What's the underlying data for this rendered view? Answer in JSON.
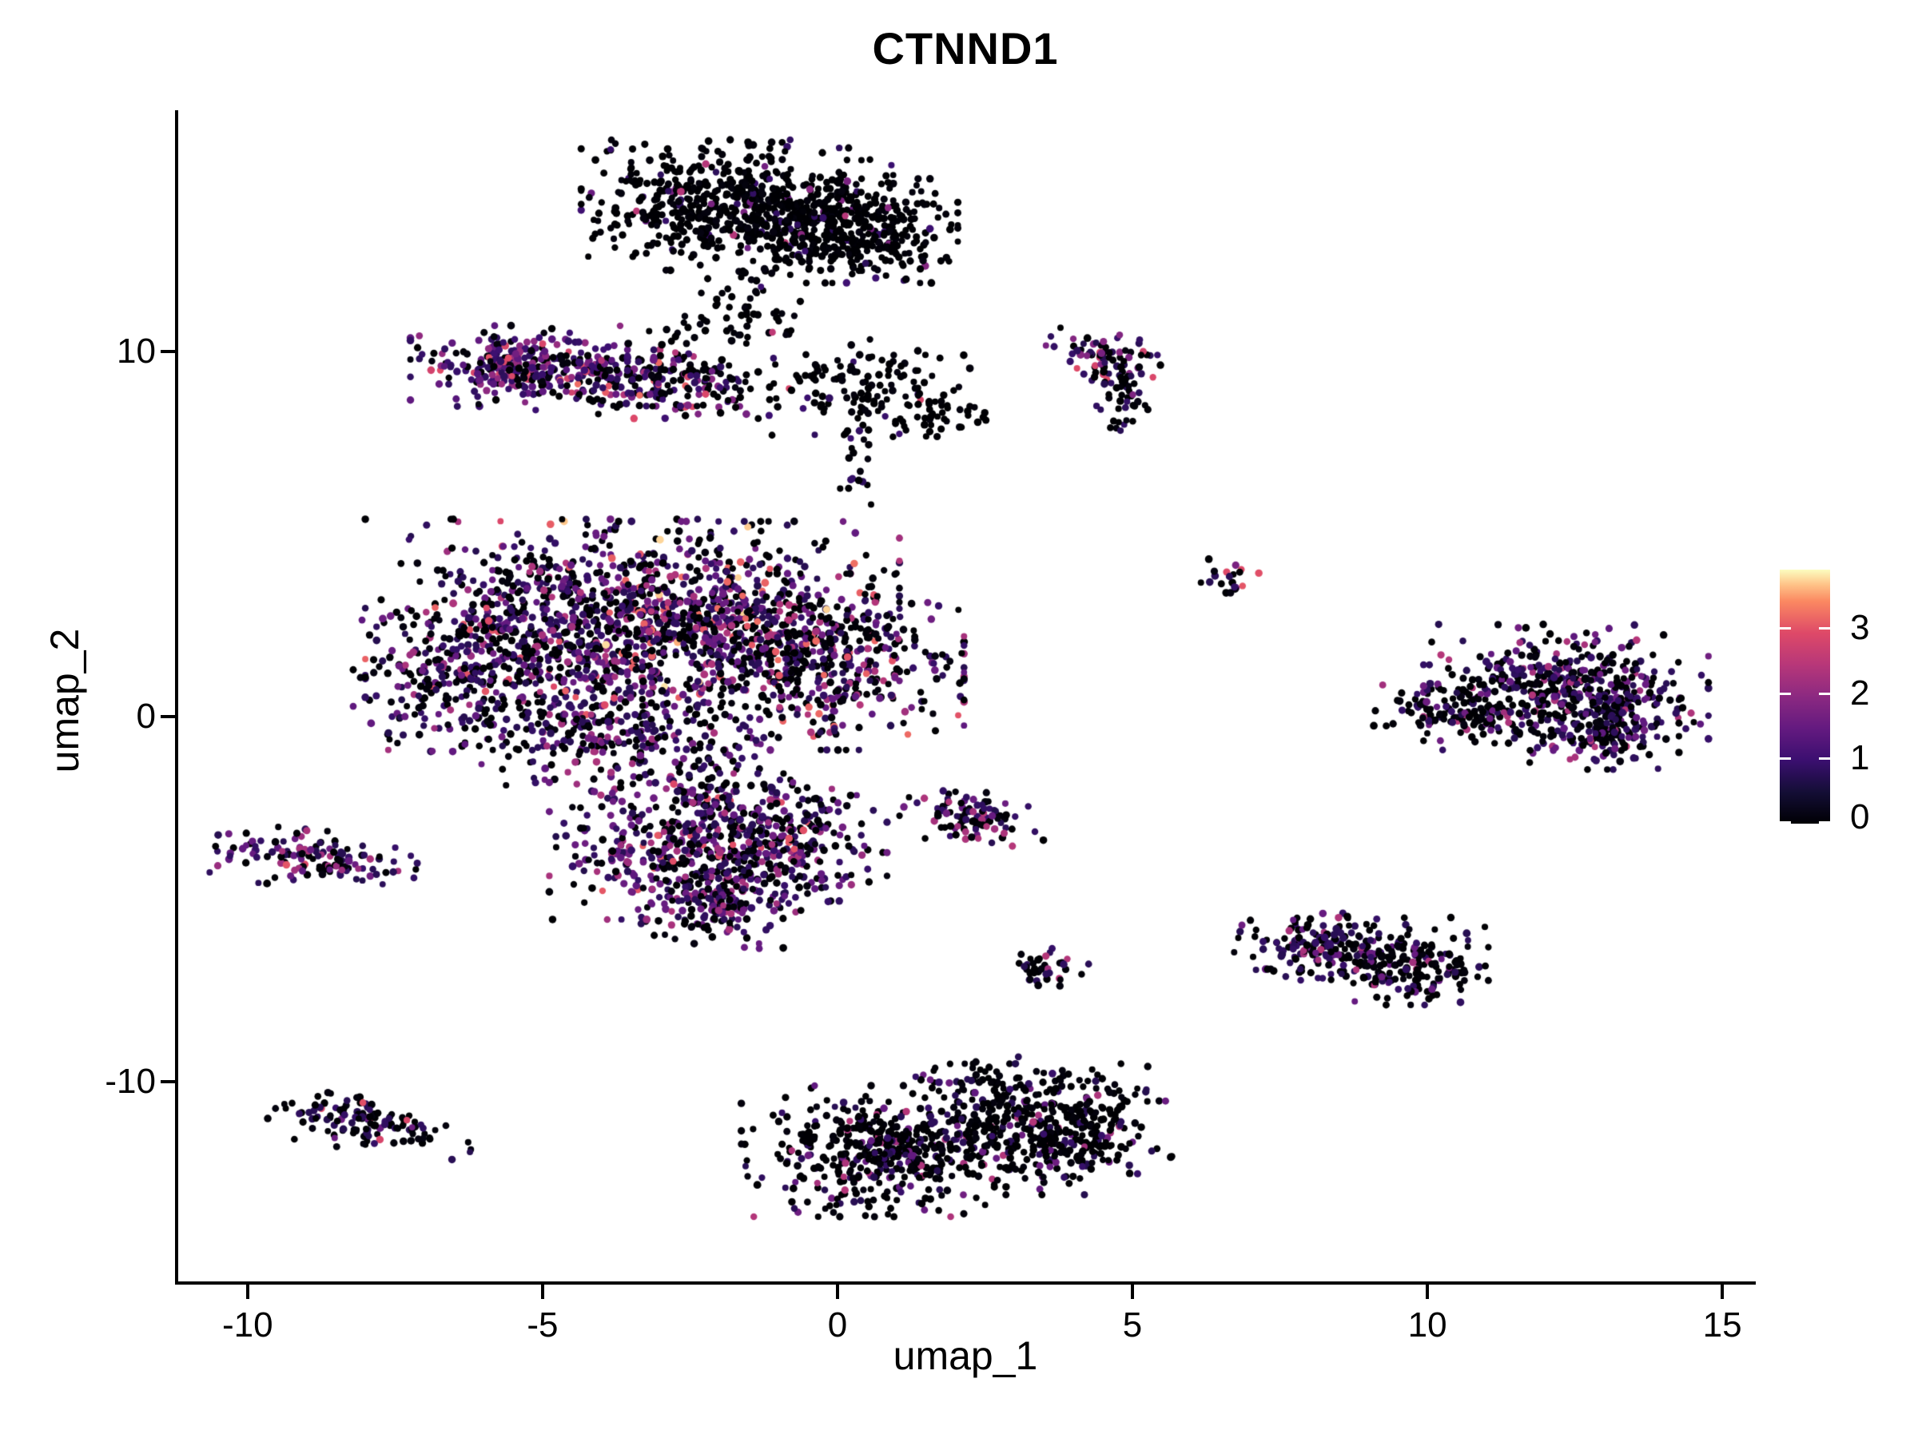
{
  "title": "CTNND1",
  "chart_data": {
    "type": "scatter",
    "title": "CTNND1",
    "xlabel": "umap_1",
    "ylabel": "umap_2",
    "xlim": [
      -11.19,
      15.54
    ],
    "ylim": [
      -15.51,
      16.56
    ],
    "x_ticks": [
      -10,
      -5,
      0,
      5,
      10,
      15
    ],
    "y_ticks": [
      -10,
      0,
      10
    ],
    "grid": false,
    "legend_position": "right",
    "point_radius": 4.4,
    "color_scale": {
      "name": "magma",
      "domain": [
        0,
        3.9
      ],
      "legend_ticks": [
        0,
        1,
        2,
        3
      ],
      "stops": [
        [
          0.0,
          "#000004"
        ],
        [
          0.125,
          "#140e36"
        ],
        [
          0.25,
          "#3b0f70"
        ],
        [
          0.375,
          "#641a80"
        ],
        [
          0.5,
          "#8c2981"
        ],
        [
          0.625,
          "#b73779"
        ],
        [
          0.75,
          "#de4968"
        ],
        [
          0.875,
          "#fb8861"
        ],
        [
          0.94,
          "#fec287"
        ],
        [
          1.0,
          "#fcfdbf"
        ]
      ]
    },
    "clusters": [
      {
        "name": "top-blob-main",
        "kind": "blob",
        "cx": -1.7,
        "cy": 14.0,
        "sx": 1.15,
        "sy": 0.78,
        "n": 620,
        "expr": [
          [
            0,
            0.93
          ],
          [
            0.9,
            0.04
          ],
          [
            1.6,
            0.02
          ],
          [
            2.4,
            0.01
          ]
        ]
      },
      {
        "name": "top-blob-right",
        "kind": "blob",
        "cx": 0.2,
        "cy": 13.3,
        "sx": 0.8,
        "sy": 0.62,
        "n": 380,
        "expr": [
          [
            0,
            0.94
          ],
          [
            0.9,
            0.04
          ],
          [
            1.8,
            0.02
          ]
        ]
      },
      {
        "name": "top-blob-bottom-trail",
        "kind": "line",
        "x1": -1.4,
        "y1": 12.2,
        "x2": -1.1,
        "y2": 10.4,
        "jitter": 0.35,
        "n": 45,
        "expr": [
          [
            0,
            0.93
          ],
          [
            0.9,
            0.04
          ],
          [
            2.6,
            0.03
          ]
        ]
      },
      {
        "name": "trail-to-left",
        "kind": "line",
        "x1": -1.9,
        "y1": 11.6,
        "x2": -2.6,
        "y2": 10.1,
        "jitter": 0.3,
        "n": 30,
        "expr": [
          [
            0,
            0.95
          ],
          [
            1.0,
            0.05
          ]
        ]
      },
      {
        "name": "neck-cluster",
        "kind": "blob",
        "cx": 0.45,
        "cy": 9.0,
        "sx": 0.78,
        "sy": 0.6,
        "n": 130,
        "expr": [
          [
            0,
            0.92
          ],
          [
            0.9,
            0.05
          ],
          [
            2.8,
            0.03
          ]
        ]
      },
      {
        "name": "neck-right-jut",
        "kind": "blob",
        "cx": 1.7,
        "cy": 8.2,
        "sx": 0.4,
        "sy": 0.3,
        "n": 40,
        "expr": [
          [
            0,
            0.95
          ],
          [
            0.9,
            0.05
          ]
        ]
      },
      {
        "name": "neck-down-strand",
        "kind": "line",
        "x1": 0.35,
        "y1": 8.2,
        "x2": 0.1,
        "y2": 6.2,
        "jitter": 0.28,
        "n": 22,
        "expr": [
          [
            0,
            0.9
          ],
          [
            0.9,
            0.1
          ]
        ]
      },
      {
        "name": "left-purple-dense",
        "kind": "blob",
        "cx": -5.4,
        "cy": 9.6,
        "sx": 0.8,
        "sy": 0.48,
        "n": 270,
        "expr": [
          [
            0,
            0.22
          ],
          [
            0.9,
            0.34
          ],
          [
            1.4,
            0.22
          ],
          [
            2.0,
            0.14
          ],
          [
            2.9,
            0.08
          ]
        ]
      },
      {
        "name": "left-purple-mid",
        "kind": "blob",
        "cx": -3.5,
        "cy": 9.25,
        "sx": 0.85,
        "sy": 0.42,
        "n": 190,
        "expr": [
          [
            0,
            0.5
          ],
          [
            0.9,
            0.25
          ],
          [
            1.6,
            0.12
          ],
          [
            2.3,
            0.08
          ],
          [
            3.1,
            0.05
          ]
        ]
      },
      {
        "name": "left-purple-tip",
        "kind": "blob",
        "cx": -2.3,
        "cy": 8.9,
        "sx": 0.5,
        "sy": 0.32,
        "n": 70,
        "expr": [
          [
            0,
            0.62
          ],
          [
            0.9,
            0.18
          ],
          [
            1.8,
            0.1
          ],
          [
            2.9,
            0.1
          ]
        ]
      },
      {
        "name": "central-left",
        "kind": "blob",
        "cx": -4.9,
        "cy": 2.3,
        "sx": 1.35,
        "sy": 1.35,
        "n": 680,
        "expr": [
          [
            0,
            0.44
          ],
          [
            0.8,
            0.26
          ],
          [
            1.5,
            0.18
          ],
          [
            2.2,
            0.08
          ],
          [
            3.0,
            0.04
          ]
        ]
      },
      {
        "name": "central-mid",
        "kind": "blob",
        "cx": -2.4,
        "cy": 2.7,
        "sx": 1.5,
        "sy": 1.15,
        "n": 760,
        "expr": [
          [
            0,
            0.4
          ],
          [
            0.8,
            0.24
          ],
          [
            1.5,
            0.18
          ],
          [
            2.3,
            0.11
          ],
          [
            3.1,
            0.05
          ],
          [
            3.7,
            0.02
          ]
        ]
      },
      {
        "name": "central-right",
        "kind": "blob",
        "cx": -0.5,
        "cy": 1.5,
        "sx": 1.15,
        "sy": 1.05,
        "n": 520,
        "expr": [
          [
            0,
            0.48
          ],
          [
            0.8,
            0.22
          ],
          [
            1.5,
            0.16
          ],
          [
            2.3,
            0.09
          ],
          [
            3.1,
            0.05
          ]
        ]
      },
      {
        "name": "central-left-edge",
        "kind": "blob",
        "cx": -6.6,
        "cy": 1.0,
        "sx": 0.7,
        "sy": 0.85,
        "n": 170,
        "expr": [
          [
            0,
            0.5
          ],
          [
            0.8,
            0.3
          ],
          [
            1.5,
            0.15
          ],
          [
            2.2,
            0.05
          ]
        ]
      },
      {
        "name": "central-bottom",
        "kind": "blob",
        "cx": -3.9,
        "cy": -0.5,
        "sx": 1.05,
        "sy": 0.6,
        "n": 220,
        "expr": [
          [
            0,
            0.45
          ],
          [
            0.8,
            0.3
          ],
          [
            1.5,
            0.15
          ],
          [
            2.2,
            0.1
          ]
        ]
      },
      {
        "name": "bridge-mid",
        "kind": "line",
        "x1": -2.4,
        "y1": -1.2,
        "x2": -1.8,
        "y2": -2.2,
        "jitter": 0.4,
        "n": 50,
        "expr": [
          [
            0,
            0.5
          ],
          [
            0.8,
            0.3
          ],
          [
            1.6,
            0.2
          ]
        ]
      },
      {
        "name": "lower-central-left",
        "kind": "blob",
        "cx": -2.7,
        "cy": -3.6,
        "sx": 0.95,
        "sy": 0.85,
        "n": 360,
        "expr": [
          [
            0,
            0.34
          ],
          [
            0.8,
            0.3
          ],
          [
            1.5,
            0.22
          ],
          [
            2.2,
            0.1
          ],
          [
            3.0,
            0.04
          ]
        ]
      },
      {
        "name": "lower-central-right",
        "kind": "blob",
        "cx": -1.0,
        "cy": -3.4,
        "sx": 0.8,
        "sy": 0.8,
        "n": 300,
        "expr": [
          [
            0,
            0.45
          ],
          [
            0.8,
            0.28
          ],
          [
            1.5,
            0.17
          ],
          [
            2.2,
            0.08
          ],
          [
            3.0,
            0.02
          ]
        ]
      },
      {
        "name": "lower-central-tip",
        "kind": "blob",
        "cx": -2.0,
        "cy": -5.2,
        "sx": 0.6,
        "sy": 0.5,
        "n": 150,
        "expr": [
          [
            0,
            0.4
          ],
          [
            0.8,
            0.3
          ],
          [
            1.5,
            0.2
          ],
          [
            2.2,
            0.1
          ]
        ]
      },
      {
        "name": "small-left",
        "kind": "blob",
        "cx": -8.85,
        "cy": -3.9,
        "sx": 0.75,
        "sy": 0.34,
        "n": 135,
        "rot": -8,
        "expr": [
          [
            0,
            0.28
          ],
          [
            0.8,
            0.34
          ],
          [
            1.5,
            0.22
          ],
          [
            2.2,
            0.13
          ],
          [
            3.0,
            0.03
          ]
        ]
      },
      {
        "name": "small-left-bottom",
        "kind": "blob",
        "cx": -7.9,
        "cy": -11.15,
        "sx": 0.78,
        "sy": 0.32,
        "n": 125,
        "rot": -12,
        "expr": [
          [
            0,
            0.58
          ],
          [
            0.8,
            0.3
          ],
          [
            1.5,
            0.08
          ],
          [
            2.9,
            0.04
          ]
        ]
      },
      {
        "name": "bottom-left-lobe",
        "kind": "blob",
        "cx": 0.9,
        "cy": -11.9,
        "sx": 1.1,
        "sy": 0.78,
        "n": 470,
        "expr": [
          [
            0,
            0.77
          ],
          [
            0.8,
            0.13
          ],
          [
            1.5,
            0.06
          ],
          [
            2.3,
            0.04
          ]
        ]
      },
      {
        "name": "bottom-right-lobe",
        "kind": "blob",
        "cx": 3.6,
        "cy": -11.3,
        "sx": 0.9,
        "sy": 0.78,
        "n": 420,
        "expr": [
          [
            0,
            0.8
          ],
          [
            0.8,
            0.12
          ],
          [
            1.5,
            0.05
          ],
          [
            2.3,
            0.03
          ]
        ]
      },
      {
        "name": "bottom-top-arc",
        "kind": "line",
        "x1": 1.6,
        "y1": -10.2,
        "x2": 3.1,
        "y2": -9.9,
        "jitter": 0.3,
        "n": 60,
        "expr": [
          [
            0,
            0.85
          ],
          [
            0.8,
            0.1
          ],
          [
            1.5,
            0.05
          ]
        ]
      },
      {
        "name": "small-mid",
        "kind": "blob",
        "cx": 2.35,
        "cy": -2.8,
        "sx": 0.55,
        "sy": 0.38,
        "n": 95,
        "rot": -18,
        "expr": [
          [
            0,
            0.42
          ],
          [
            0.8,
            0.25
          ],
          [
            1.5,
            0.15
          ],
          [
            2.3,
            0.18
          ]
        ]
      },
      {
        "name": "tiny-mid",
        "kind": "blob",
        "cx": 3.6,
        "cy": -7.0,
        "sx": 0.3,
        "sy": 0.36,
        "n": 38,
        "rot": 25,
        "expr": [
          [
            0,
            0.62
          ],
          [
            0.8,
            0.26
          ],
          [
            2.3,
            0.12
          ]
        ]
      },
      {
        "name": "topright-hook-top",
        "kind": "blob",
        "cx": 4.4,
        "cy": 9.9,
        "sx": 0.48,
        "sy": 0.3,
        "n": 65,
        "rot": -20,
        "expr": [
          [
            0,
            0.5
          ],
          [
            0.8,
            0.3
          ],
          [
            1.8,
            0.12
          ],
          [
            2.8,
            0.08
          ]
        ]
      },
      {
        "name": "topright-hook-tail",
        "kind": "line",
        "x1": 4.75,
        "y1": 9.6,
        "x2": 5.0,
        "y2": 8.1,
        "jitter": 0.22,
        "n": 55,
        "expr": [
          [
            0,
            0.78
          ],
          [
            0.8,
            0.18
          ],
          [
            1.8,
            0.04
          ]
        ]
      },
      {
        "name": "tiny-right",
        "kind": "blob",
        "cx": 6.65,
        "cy": 3.85,
        "sx": 0.24,
        "sy": 0.2,
        "n": 20,
        "expr": [
          [
            0,
            0.5
          ],
          [
            0.8,
            0.25
          ],
          [
            1.8,
            0.15
          ],
          [
            3.0,
            0.1
          ]
        ]
      },
      {
        "name": "right-main",
        "kind": "blob",
        "cx": 12.35,
        "cy": 0.8,
        "sx": 1.05,
        "sy": 0.75,
        "n": 430,
        "expr": [
          [
            0,
            0.5
          ],
          [
            0.8,
            0.28
          ],
          [
            1.5,
            0.13
          ],
          [
            2.3,
            0.09
          ]
        ]
      },
      {
        "name": "right-arm",
        "kind": "blob",
        "cx": 10.5,
        "cy": 0.05,
        "sx": 0.6,
        "sy": 0.3,
        "n": 120,
        "rot": -10,
        "expr": [
          [
            0,
            0.72
          ],
          [
            0.8,
            0.14
          ],
          [
            1.5,
            0.09
          ],
          [
            2.3,
            0.05
          ]
        ]
      },
      {
        "name": "right-bottom",
        "kind": "blob",
        "cx": 13.0,
        "cy": -0.3,
        "sx": 0.55,
        "sy": 0.5,
        "n": 160,
        "expr": [
          [
            0,
            0.55
          ],
          [
            0.8,
            0.3
          ],
          [
            1.5,
            0.1
          ],
          [
            2.3,
            0.05
          ]
        ]
      },
      {
        "name": "lowerright-left",
        "kind": "blob",
        "cx": 8.2,
        "cy": -6.3,
        "sx": 0.62,
        "sy": 0.42,
        "n": 170,
        "rot": -10,
        "expr": [
          [
            0,
            0.52
          ],
          [
            0.8,
            0.3
          ],
          [
            1.5,
            0.12
          ],
          [
            2.3,
            0.06
          ]
        ]
      },
      {
        "name": "lowerright-right",
        "kind": "blob",
        "cx": 9.7,
        "cy": -6.7,
        "sx": 0.58,
        "sy": 0.52,
        "n": 190,
        "expr": [
          [
            0,
            0.76
          ],
          [
            0.8,
            0.15
          ],
          [
            1.5,
            0.06
          ],
          [
            2.3,
            0.03
          ]
        ]
      }
    ]
  }
}
